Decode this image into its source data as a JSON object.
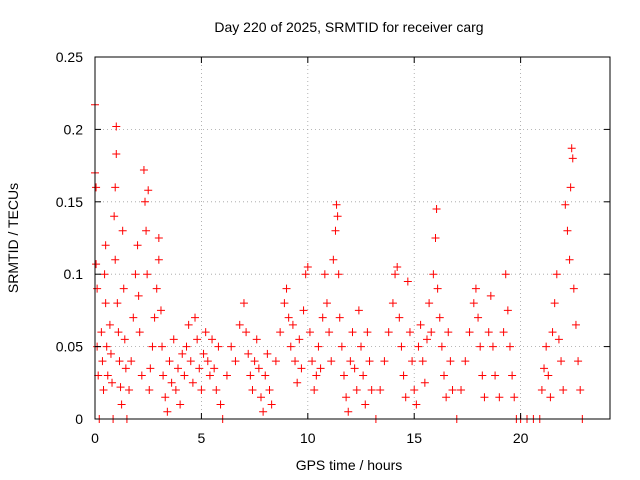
{
  "chart_data": {
    "type": "scatter",
    "title": "Day 220 of 2025, SRMTID for receiver carg",
    "xlabel": "GPS time / hours",
    "ylabel": "SRMTID / TECUs",
    "xlim": [
      0,
      24.2
    ],
    "ylim": [
      0,
      0.25
    ],
    "xticks": [
      0,
      5,
      10,
      15,
      20
    ],
    "xtick_labels": [
      "0",
      "5",
      "10",
      "15",
      "20"
    ],
    "yticks": [
      0,
      0.05,
      0.1,
      0.15,
      0.2,
      0.25
    ],
    "ytick_labels": [
      "0",
      "0.05",
      "0.1",
      "0.15",
      "0.2",
      "0.25"
    ],
    "grid": true,
    "marker": "+",
    "color": "#ff0000",
    "series": [
      {
        "name": "SRMTID",
        "points": [
          [
            0.0,
            0.217
          ],
          [
            0.0,
            0.17
          ],
          [
            0.05,
            0.16
          ],
          [
            0.05,
            0.107
          ],
          [
            0.1,
            0.09
          ],
          [
            0.1,
            0.05
          ],
          [
            0.15,
            0.03
          ],
          [
            0.2,
            0.0
          ],
          [
            0.3,
            0.06
          ],
          [
            0.35,
            0.04
          ],
          [
            0.4,
            0.02
          ],
          [
            0.45,
            0.1
          ],
          [
            0.5,
            0.12
          ],
          [
            0.5,
            0.08
          ],
          [
            0.55,
            0.05
          ],
          [
            0.6,
            0.03
          ],
          [
            0.7,
            0.065
          ],
          [
            0.75,
            0.045
          ],
          [
            0.8,
            0.025
          ],
          [
            0.85,
            0.0
          ],
          [
            0.9,
            0.14
          ],
          [
            0.95,
            0.16
          ],
          [
            0.95,
            0.11
          ],
          [
            1.0,
            0.202
          ],
          [
            1.0,
            0.183
          ],
          [
            1.05,
            0.08
          ],
          [
            1.1,
            0.06
          ],
          [
            1.15,
            0.04
          ],
          [
            1.2,
            0.022
          ],
          [
            1.25,
            0.01
          ],
          [
            1.3,
            0.13
          ],
          [
            1.35,
            0.09
          ],
          [
            1.4,
            0.055
          ],
          [
            1.45,
            0.035
          ],
          [
            1.5,
            0.0
          ],
          [
            1.6,
            0.02
          ],
          [
            1.7,
            0.04
          ],
          [
            1.8,
            0.07
          ],
          [
            1.9,
            0.1
          ],
          [
            2.0,
            0.12
          ],
          [
            2.05,
            0.085
          ],
          [
            2.1,
            0.06
          ],
          [
            2.2,
            0.03
          ],
          [
            2.3,
            0.172
          ],
          [
            2.35,
            0.15
          ],
          [
            2.4,
            0.13
          ],
          [
            2.45,
            0.1
          ],
          [
            2.5,
            0.158
          ],
          [
            2.55,
            0.02
          ],
          [
            2.6,
            0.035
          ],
          [
            2.7,
            0.05
          ],
          [
            2.8,
            0.07
          ],
          [
            2.9,
            0.09
          ],
          [
            3.0,
            0.125
          ],
          [
            3.0,
            0.11
          ],
          [
            3.1,
            0.075
          ],
          [
            3.15,
            0.05
          ],
          [
            3.2,
            0.03
          ],
          [
            3.3,
            0.015
          ],
          [
            3.4,
            0.005
          ],
          [
            3.5,
            0.04
          ],
          [
            3.6,
            0.025
          ],
          [
            3.7,
            0.055
          ],
          [
            3.8,
            0.02
          ],
          [
            3.9,
            0.035
          ],
          [
            4.0,
            0.01
          ],
          [
            4.1,
            0.045
          ],
          [
            4.2,
            0.03
          ],
          [
            4.3,
            0.05
          ],
          [
            4.4,
            0.065
          ],
          [
            4.5,
            0.04
          ],
          [
            4.6,
            0.025
          ],
          [
            4.7,
            0.07
          ],
          [
            4.8,
            0.055
          ],
          [
            4.9,
            0.035
          ],
          [
            5.0,
            0.02
          ],
          [
            5.1,
            0.045
          ],
          [
            5.2,
            0.06
          ],
          [
            5.3,
            0.04
          ],
          [
            5.4,
            0.03
          ],
          [
            5.5,
            0.055
          ],
          [
            5.6,
            0.035
          ],
          [
            5.7,
            0.02
          ],
          [
            5.8,
            0.05
          ],
          [
            5.9,
            0.01
          ],
          [
            6.0,
            0.0
          ],
          [
            6.2,
            0.03
          ],
          [
            6.4,
            0.05
          ],
          [
            6.6,
            0.04
          ],
          [
            6.8,
            0.065
          ],
          [
            7.0,
            0.08
          ],
          [
            7.1,
            0.06
          ],
          [
            7.2,
            0.045
          ],
          [
            7.3,
            0.03
          ],
          [
            7.4,
            0.02
          ],
          [
            7.5,
            0.04
          ],
          [
            7.6,
            0.055
          ],
          [
            7.7,
            0.035
          ],
          [
            7.8,
            0.015
          ],
          [
            7.9,
            0.005
          ],
          [
            8.0,
            0.03
          ],
          [
            8.1,
            0.045
          ],
          [
            8.2,
            0.02
          ],
          [
            8.3,
            0.01
          ],
          [
            8.5,
            0.04
          ],
          [
            8.7,
            0.06
          ],
          [
            8.9,
            0.08
          ],
          [
            9.0,
            0.09
          ],
          [
            9.1,
            0.07
          ],
          [
            9.2,
            0.05
          ],
          [
            9.3,
            0.065
          ],
          [
            9.4,
            0.04
          ],
          [
            9.5,
            0.025
          ],
          [
            9.6,
            0.055
          ],
          [
            9.7,
            0.035
          ],
          [
            9.8,
            0.075
          ],
          [
            9.9,
            0.1
          ],
          [
            10.0,
            0.105
          ],
          [
            10.1,
            0.06
          ],
          [
            10.2,
            0.04
          ],
          [
            10.3,
            0.02
          ],
          [
            10.4,
            0.03
          ],
          [
            10.5,
            0.05
          ],
          [
            10.6,
            0.035
          ],
          [
            10.7,
            0.07
          ],
          [
            10.8,
            0.1
          ],
          [
            10.9,
            0.08
          ],
          [
            11.0,
            0.06
          ],
          [
            11.1,
            0.04
          ],
          [
            11.2,
            0.11
          ],
          [
            11.3,
            0.13
          ],
          [
            11.35,
            0.148
          ],
          [
            11.4,
            0.14
          ],
          [
            11.45,
            0.1
          ],
          [
            11.5,
            0.07
          ],
          [
            11.6,
            0.05
          ],
          [
            11.7,
            0.03
          ],
          [
            11.8,
            0.015
          ],
          [
            11.9,
            0.005
          ],
          [
            12.0,
            0.04
          ],
          [
            12.1,
            0.06
          ],
          [
            12.2,
            0.035
          ],
          [
            12.3,
            0.02
          ],
          [
            12.4,
            0.075
          ],
          [
            12.5,
            0.05
          ],
          [
            12.6,
            0.03
          ],
          [
            12.7,
            0.01
          ],
          [
            12.8,
            0.06
          ],
          [
            12.9,
            0.04
          ],
          [
            13.0,
            0.02
          ],
          [
            13.2,
            0.0
          ],
          [
            13.4,
            0.02
          ],
          [
            13.6,
            0.04
          ],
          [
            13.8,
            0.06
          ],
          [
            14.0,
            0.08
          ],
          [
            14.1,
            0.1
          ],
          [
            14.2,
            0.105
          ],
          [
            14.3,
            0.07
          ],
          [
            14.4,
            0.05
          ],
          [
            14.5,
            0.03
          ],
          [
            14.6,
            0.015
          ],
          [
            14.7,
            0.095
          ],
          [
            14.8,
            0.06
          ],
          [
            14.9,
            0.04
          ],
          [
            15.0,
            0.02
          ],
          [
            15.1,
            0.01
          ],
          [
            15.2,
            0.05
          ],
          [
            15.3,
            0.065
          ],
          [
            15.4,
            0.04
          ],
          [
            15.5,
            0.025
          ],
          [
            15.6,
            0.055
          ],
          [
            15.7,
            0.08
          ],
          [
            15.8,
            0.06
          ],
          [
            15.9,
            0.1
          ],
          [
            16.0,
            0.125
          ],
          [
            16.05,
            0.145
          ],
          [
            16.1,
            0.09
          ],
          [
            16.2,
            0.07
          ],
          [
            16.3,
            0.05
          ],
          [
            16.4,
            0.03
          ],
          [
            16.5,
            0.015
          ],
          [
            16.6,
            0.06
          ],
          [
            16.7,
            0.04
          ],
          [
            16.8,
            0.02
          ],
          [
            17.0,
            0.0
          ],
          [
            17.2,
            0.02
          ],
          [
            17.4,
            0.04
          ],
          [
            17.6,
            0.06
          ],
          [
            17.8,
            0.08
          ],
          [
            17.9,
            0.09
          ],
          [
            18.0,
            0.07
          ],
          [
            18.1,
            0.05
          ],
          [
            18.2,
            0.03
          ],
          [
            18.3,
            0.015
          ],
          [
            18.5,
            0.06
          ],
          [
            18.6,
            0.085
          ],
          [
            18.7,
            0.05
          ],
          [
            18.8,
            0.03
          ],
          [
            19.0,
            0.015
          ],
          [
            19.2,
            0.06
          ],
          [
            19.3,
            0.1
          ],
          [
            19.4,
            0.075
          ],
          [
            19.5,
            0.05
          ],
          [
            19.6,
            0.03
          ],
          [
            19.7,
            0.015
          ],
          [
            19.8,
            0.0
          ],
          [
            20.0,
            0.0
          ],
          [
            20.3,
            0.0
          ],
          [
            20.6,
            0.0
          ],
          [
            20.9,
            0.0
          ],
          [
            21.0,
            0.02
          ],
          [
            21.1,
            0.035
          ],
          [
            21.2,
            0.05
          ],
          [
            21.3,
            0.03
          ],
          [
            21.4,
            0.015
          ],
          [
            21.5,
            0.06
          ],
          [
            21.6,
            0.08
          ],
          [
            21.7,
            0.1
          ],
          [
            21.8,
            0.055
          ],
          [
            21.9,
            0.04
          ],
          [
            22.0,
            0.02
          ],
          [
            22.1,
            0.148
          ],
          [
            22.2,
            0.13
          ],
          [
            22.3,
            0.11
          ],
          [
            22.35,
            0.16
          ],
          [
            22.4,
            0.187
          ],
          [
            22.45,
            0.18
          ],
          [
            22.5,
            0.09
          ],
          [
            22.6,
            0.065
          ],
          [
            22.7,
            0.04
          ],
          [
            22.8,
            0.02
          ],
          [
            22.9,
            0.0
          ]
        ]
      }
    ]
  }
}
